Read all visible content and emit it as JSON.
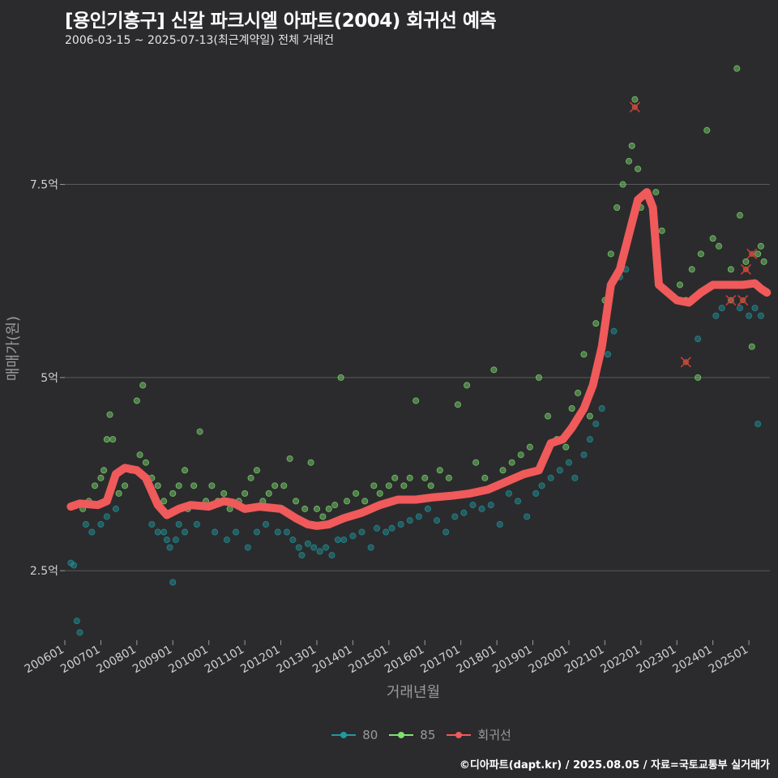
{
  "header": {
    "title": "[용인기흥구] 신갈 파크시엘 아파트(2004) 회귀선 예측",
    "subtitle": "2006-03-15 ~ 2025-07-13(최근계약일) 전체 거래건"
  },
  "footer": {
    "credit": "©디아파트(dapt.kr) / 2025.08.05 / 자료=국토교통부 실거래가"
  },
  "colors": {
    "background": "#2b2b2d",
    "s80": "#1f9aa0",
    "s85": "#7fe070",
    "regression": "#f05a5a",
    "grid": "#5a5a5a"
  },
  "chart_data": {
    "type": "scatter",
    "title": "[용인기흥구] 신갈 파크시엘 아파트(2004) 회귀선 예측",
    "xlabel": "거래년월",
    "ylabel": "매매가(원)",
    "xlim": [
      "2006-01",
      "2025-08"
    ],
    "ylim": [
      1.6,
      9.1
    ],
    "y_unit": "억",
    "y_ticks": [
      {
        "value": 2.5,
        "label": "2.5억"
      },
      {
        "value": 5,
        "label": "5억"
      },
      {
        "value": 7.5,
        "label": "7.5억"
      }
    ],
    "x_ticks": [
      "200601",
      "200701",
      "200801",
      "200901",
      "201001",
      "201101",
      "201201",
      "201301",
      "201401",
      "201501",
      "201601",
      "201701",
      "201801",
      "201901",
      "202001",
      "202101",
      "202201",
      "202301",
      "202401",
      "202501"
    ],
    "legend": {
      "position": "bottom",
      "entries": [
        "80",
        "85",
        "회귀선"
      ]
    },
    "series": [
      {
        "name": "80",
        "points": [
          [
            "2006-03",
            2.6
          ],
          [
            "2006-04",
            2.57
          ],
          [
            "2006-05",
            1.85
          ],
          [
            "2006-06",
            1.7
          ],
          [
            "2006-08",
            3.1
          ],
          [
            "2006-10",
            3.0
          ],
          [
            "2007-01",
            3.1
          ],
          [
            "2007-03",
            3.2
          ],
          [
            "2007-06",
            3.3
          ],
          [
            "2008-06",
            3.1
          ],
          [
            "2008-08",
            3.0
          ],
          [
            "2008-10",
            3.0
          ],
          [
            "2008-11",
            2.9
          ],
          [
            "2008-12",
            2.8
          ],
          [
            "2009-01",
            2.35
          ],
          [
            "2009-02",
            2.9
          ],
          [
            "2009-03",
            3.1
          ],
          [
            "2009-05",
            3.0
          ],
          [
            "2009-09",
            3.1
          ],
          [
            "2010-03",
            3.0
          ],
          [
            "2010-07",
            2.9
          ],
          [
            "2010-10",
            3.0
          ],
          [
            "2011-02",
            2.8
          ],
          [
            "2011-05",
            3.0
          ],
          [
            "2011-08",
            3.1
          ],
          [
            "2011-12",
            3.0
          ],
          [
            "2012-03",
            3.0
          ],
          [
            "2012-05",
            2.9
          ],
          [
            "2012-07",
            2.8
          ],
          [
            "2012-08",
            2.7
          ],
          [
            "2012-10",
            2.85
          ],
          [
            "2012-12",
            2.8
          ],
          [
            "2013-02",
            2.75
          ],
          [
            "2013-04",
            2.8
          ],
          [
            "2013-06",
            2.7
          ],
          [
            "2013-08",
            2.9
          ],
          [
            "2013-10",
            2.9
          ],
          [
            "2014-01",
            2.95
          ],
          [
            "2014-04",
            3.0
          ],
          [
            "2014-07",
            2.8
          ],
          [
            "2014-09",
            3.05
          ],
          [
            "2014-12",
            3.0
          ],
          [
            "2015-02",
            3.05
          ],
          [
            "2015-05",
            3.1
          ],
          [
            "2015-08",
            3.15
          ],
          [
            "2015-11",
            3.2
          ],
          [
            "2016-02",
            3.3
          ],
          [
            "2016-05",
            3.15
          ],
          [
            "2016-08",
            3.0
          ],
          [
            "2016-11",
            3.2
          ],
          [
            "2017-02",
            3.25
          ],
          [
            "2017-05",
            3.35
          ],
          [
            "2017-08",
            3.3
          ],
          [
            "2017-11",
            3.35
          ],
          [
            "2018-02",
            3.1
          ],
          [
            "2018-05",
            3.5
          ],
          [
            "2018-08",
            3.4
          ],
          [
            "2018-11",
            3.2
          ],
          [
            "2019-02",
            3.5
          ],
          [
            "2019-04",
            3.6
          ],
          [
            "2019-07",
            3.7
          ],
          [
            "2019-10",
            3.8
          ],
          [
            "2020-01",
            3.9
          ],
          [
            "2020-03",
            3.7
          ],
          [
            "2020-06",
            4.0
          ],
          [
            "2020-08",
            4.2
          ],
          [
            "2020-10",
            4.4
          ],
          [
            "2020-12",
            4.6
          ],
          [
            "2021-02",
            5.3
          ],
          [
            "2021-04",
            5.6
          ],
          [
            "2021-06",
            6.3
          ],
          [
            "2021-08",
            6.4
          ],
          [
            "2023-08",
            5.5
          ],
          [
            "2024-02",
            5.8
          ],
          [
            "2024-04",
            5.9
          ],
          [
            "2024-07",
            6.0
          ],
          [
            "2024-10",
            5.9
          ],
          [
            "2025-01",
            5.8
          ],
          [
            "2025-03",
            5.9
          ],
          [
            "2025-04",
            4.4
          ],
          [
            "2025-05",
            5.8
          ]
        ]
      },
      {
        "name": "85",
        "points": [
          [
            "2006-07",
            3.3
          ],
          [
            "2006-09",
            3.4
          ],
          [
            "2006-11",
            3.6
          ],
          [
            "2007-01",
            3.7
          ],
          [
            "2007-02",
            3.8
          ],
          [
            "2007-03",
            4.2
          ],
          [
            "2007-04",
            4.52
          ],
          [
            "2007-05",
            4.2
          ],
          [
            "2007-07",
            3.5
          ],
          [
            "2007-09",
            3.6
          ],
          [
            "2007-11",
            3.8
          ],
          [
            "2008-01",
            4.7
          ],
          [
            "2008-02",
            4.0
          ],
          [
            "2008-03",
            4.9
          ],
          [
            "2008-04",
            3.9
          ],
          [
            "2008-06",
            3.7
          ],
          [
            "2008-08",
            3.6
          ],
          [
            "2008-10",
            3.4
          ],
          [
            "2009-01",
            3.5
          ],
          [
            "2009-03",
            3.6
          ],
          [
            "2009-05",
            3.8
          ],
          [
            "2009-06",
            3.3
          ],
          [
            "2009-08",
            3.6
          ],
          [
            "2009-10",
            4.3
          ],
          [
            "2009-12",
            3.4
          ],
          [
            "2010-02",
            3.6
          ],
          [
            "2010-04",
            3.4
          ],
          [
            "2010-06",
            3.5
          ],
          [
            "2010-08",
            3.3
          ],
          [
            "2010-11",
            3.4
          ],
          [
            "2011-01",
            3.5
          ],
          [
            "2011-03",
            3.7
          ],
          [
            "2011-05",
            3.8
          ],
          [
            "2011-07",
            3.4
          ],
          [
            "2011-09",
            3.5
          ],
          [
            "2011-11",
            3.6
          ],
          [
            "2012-02",
            3.6
          ],
          [
            "2012-04",
            3.95
          ],
          [
            "2012-06",
            3.4
          ],
          [
            "2012-09",
            3.3
          ],
          [
            "2012-11",
            3.9
          ],
          [
            "2013-01",
            3.3
          ],
          [
            "2013-03",
            3.2
          ],
          [
            "2013-05",
            3.3
          ],
          [
            "2013-07",
            3.35
          ],
          [
            "2013-09",
            5.0
          ],
          [
            "2013-11",
            3.4
          ],
          [
            "2014-02",
            3.5
          ],
          [
            "2014-05",
            3.4
          ],
          [
            "2014-08",
            3.6
          ],
          [
            "2014-10",
            3.5
          ],
          [
            "2015-01",
            3.6
          ],
          [
            "2015-03",
            3.7
          ],
          [
            "2015-06",
            3.6
          ],
          [
            "2015-08",
            3.7
          ],
          [
            "2015-10",
            4.7
          ],
          [
            "2016-01",
            3.7
          ],
          [
            "2016-03",
            3.6
          ],
          [
            "2016-06",
            3.8
          ],
          [
            "2016-09",
            3.7
          ],
          [
            "2016-12",
            4.65
          ],
          [
            "2017-03",
            4.9
          ],
          [
            "2017-06",
            3.9
          ],
          [
            "2017-09",
            3.7
          ],
          [
            "2017-12",
            5.1
          ],
          [
            "2018-03",
            3.8
          ],
          [
            "2018-06",
            3.9
          ],
          [
            "2018-09",
            4.0
          ],
          [
            "2018-12",
            4.1
          ],
          [
            "2019-03",
            5.0
          ],
          [
            "2019-06",
            4.5
          ],
          [
            "2019-09",
            4.2
          ],
          [
            "2019-12",
            4.1
          ],
          [
            "2020-02",
            4.6
          ],
          [
            "2020-04",
            4.8
          ],
          [
            "2020-06",
            5.3
          ],
          [
            "2020-08",
            4.5
          ],
          [
            "2020-10",
            5.7
          ],
          [
            "2021-01",
            6.0
          ],
          [
            "2021-03",
            6.6
          ],
          [
            "2021-05",
            7.2
          ],
          [
            "2021-07",
            7.5
          ],
          [
            "2021-09",
            7.8
          ],
          [
            "2021-10",
            8.0
          ],
          [
            "2021-11",
            8.6
          ],
          [
            "2021-12",
            7.7
          ],
          [
            "2022-01",
            7.2
          ],
          [
            "2022-03",
            7.4
          ],
          [
            "2022-06",
            7.4
          ],
          [
            "2022-08",
            6.9
          ],
          [
            "2023-02",
            6.2
          ],
          [
            "2023-04",
            6.0
          ],
          [
            "2023-06",
            6.4
          ],
          [
            "2023-08",
            5.0
          ],
          [
            "2023-09",
            6.6
          ],
          [
            "2023-11",
            8.2
          ],
          [
            "2024-01",
            6.8
          ],
          [
            "2024-03",
            6.7
          ],
          [
            "2024-05",
            6.2
          ],
          [
            "2024-07",
            6.4
          ],
          [
            "2024-09",
            9.0
          ],
          [
            "2024-10",
            7.1
          ],
          [
            "2024-12",
            6.5
          ],
          [
            "2025-02",
            5.4
          ],
          [
            "2025-04",
            6.6
          ],
          [
            "2025-05",
            6.7
          ],
          [
            "2025-06",
            6.5
          ]
        ]
      }
    ],
    "regression": [
      [
        "2006-03",
        3.33
      ],
      [
        "2006-06",
        3.37
      ],
      [
        "2006-12",
        3.35
      ],
      [
        "2007-03",
        3.4
      ],
      [
        "2007-06",
        3.75
      ],
      [
        "2007-09",
        3.83
      ],
      [
        "2008-01",
        3.8
      ],
      [
        "2008-04",
        3.7
      ],
      [
        "2008-08",
        3.35
      ],
      [
        "2008-11",
        3.22
      ],
      [
        "2009-03",
        3.3
      ],
      [
        "2009-07",
        3.35
      ],
      [
        "2010-01",
        3.33
      ],
      [
        "2010-06",
        3.4
      ],
      [
        "2010-09",
        3.38
      ],
      [
        "2011-01",
        3.3
      ],
      [
        "2011-06",
        3.33
      ],
      [
        "2012-01",
        3.3
      ],
      [
        "2012-06",
        3.18
      ],
      [
        "2012-10",
        3.1
      ],
      [
        "2013-01",
        3.08
      ],
      [
        "2013-05",
        3.1
      ],
      [
        "2013-10",
        3.18
      ],
      [
        "2014-04",
        3.25
      ],
      [
        "2014-10",
        3.35
      ],
      [
        "2015-04",
        3.42
      ],
      [
        "2015-10",
        3.42
      ],
      [
        "2016-04",
        3.45
      ],
      [
        "2016-10",
        3.47
      ],
      [
        "2017-04",
        3.5
      ],
      [
        "2017-10",
        3.55
      ],
      [
        "2018-04",
        3.65
      ],
      [
        "2018-10",
        3.75
      ],
      [
        "2019-03",
        3.8
      ],
      [
        "2019-07",
        4.15
      ],
      [
        "2019-11",
        4.2
      ],
      [
        "2020-02",
        4.35
      ],
      [
        "2020-06",
        4.6
      ],
      [
        "2020-09",
        4.9
      ],
      [
        "2020-12",
        5.4
      ],
      [
        "2021-03",
        6.2
      ],
      [
        "2021-06",
        6.4
      ],
      [
        "2021-09",
        6.85
      ],
      [
        "2021-12",
        7.3
      ],
      [
        "2022-03",
        7.4
      ],
      [
        "2022-05",
        7.2
      ],
      [
        "2022-07",
        6.2
      ],
      [
        "2022-10",
        6.1
      ],
      [
        "2023-01",
        6.0
      ],
      [
        "2023-05",
        5.97
      ],
      [
        "2023-09",
        6.1
      ],
      [
        "2024-01",
        6.2
      ],
      [
        "2024-06",
        6.2
      ],
      [
        "2024-11",
        6.2
      ],
      [
        "2025-03",
        6.22
      ],
      [
        "2025-05",
        6.15
      ],
      [
        "2025-07",
        6.1
      ]
    ],
    "outliers": [
      [
        "2021-11",
        8.5
      ],
      [
        "2023-04",
        5.2
      ],
      [
        "2024-07",
        6.0
      ],
      [
        "2024-11",
        6.0
      ],
      [
        "2024-12",
        6.4
      ],
      [
        "2025-02",
        6.6
      ]
    ]
  },
  "legend_labels": {
    "s80": "80",
    "s85": "85",
    "regression": "회귀선"
  }
}
